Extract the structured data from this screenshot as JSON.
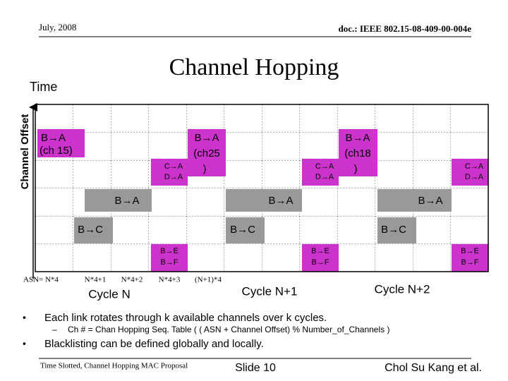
{
  "header": {
    "date": "July, 2008",
    "doc": "doc.: IEEE 802.15-08-409-00-004e"
  },
  "title": "Channel Hopping",
  "axes": {
    "time": "Time",
    "offset": "Channel Offset"
  },
  "cells": [
    {
      "lines": [
        "B→A",
        "(ch 15)"
      ]
    },
    {
      "lines": [
        "B→A",
        "(ch25",
        ")"
      ]
    },
    {
      "lines": [
        "B→A",
        "(ch18",
        ")"
      ]
    },
    {
      "lines": [
        "C→A",
        "D→A"
      ]
    },
    {
      "lines": [
        "C→A",
        "D→A"
      ]
    },
    {
      "lines": [
        "C→A",
        "D→A"
      ]
    },
    {
      "lines": [
        "B→A"
      ]
    },
    {
      "lines": [
        "B→A"
      ]
    },
    {
      "lines": [
        "B→A"
      ]
    },
    {
      "lines": [
        "B→C"
      ]
    },
    {
      "lines": [
        "B→C"
      ]
    },
    {
      "lines": [
        "B→C"
      ]
    },
    {
      "lines": [
        "B→E",
        "B→F"
      ]
    },
    {
      "lines": [
        "B→E",
        "B→F"
      ]
    },
    {
      "lines": [
        "B→E",
        "B→F"
      ]
    }
  ],
  "asn": [
    "ASN= N*4",
    "N*4+1",
    "N*4+2",
    "N*4+3",
    "(N+1)*4"
  ],
  "cycles": [
    "Cycle N",
    "Cycle N+1",
    "Cycle N+2"
  ],
  "bullets": [
    "Each link rotates through k available channels over k cycles.",
    "Ch # = Chan Hopping Seq. Table ( ( ASN + Channel Offset) % Number_of_Channels )",
    "Blacklisting can be defined globally and locally."
  ],
  "footer": {
    "left": "Time Slotted, Channel Hopping MAC Proposal",
    "slide": "Slide 10",
    "author": "Chol Su Kang et al."
  }
}
